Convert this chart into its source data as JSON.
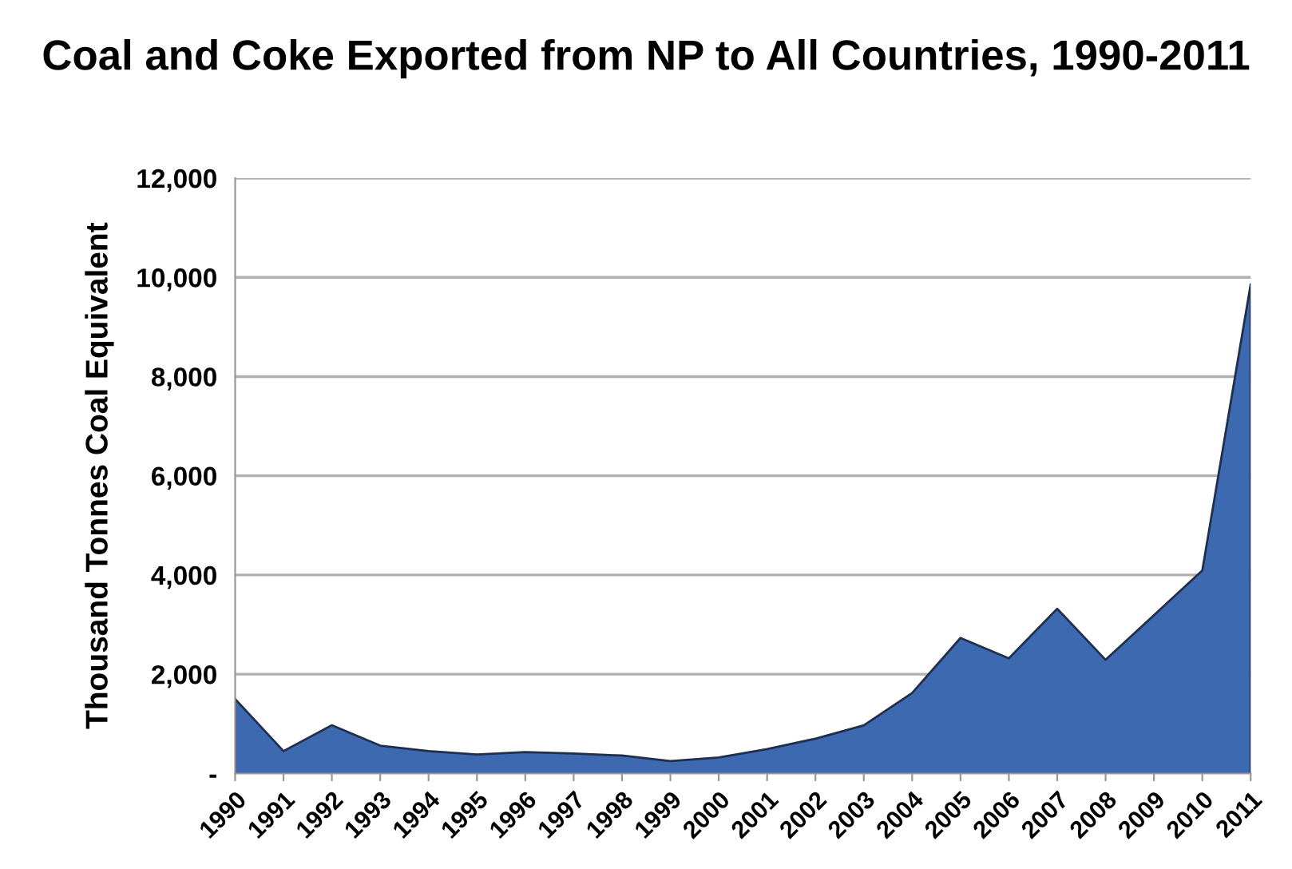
{
  "chart_data": {
    "type": "area",
    "title": "Coal and Coke Exported from NP to All Countries, 1990-2011",
    "ylabel": "Thousand Tonnes Coal Equivalent",
    "categories": [
      "1990",
      "1991",
      "1992",
      "1993",
      "1994",
      "1995",
      "1996",
      "1997",
      "1998",
      "1999",
      "2000",
      "2001",
      "2002",
      "2003",
      "2004",
      "2005",
      "2006",
      "2007",
      "2008",
      "2009",
      "2010",
      "2011"
    ],
    "series": [
      {
        "color": "#3d69b0",
        "values": [
          1500,
          450,
          970,
          560,
          450,
          380,
          430,
          400,
          360,
          250,
          320,
          490,
          700,
          970,
          1620,
          2730,
          2320,
          3320,
          2290,
          3190,
          4090,
          9860
        ]
      }
    ],
    "ylim": [
      0,
      12000
    ],
    "yticks": [
      {
        "value": 0,
        "label": "-"
      },
      {
        "value": 2000,
        "label": "2,000"
      },
      {
        "value": 4000,
        "label": "4,000"
      },
      {
        "value": 6000,
        "label": "6,000"
      },
      {
        "value": 8000,
        "label": "8,000"
      },
      {
        "value": 10000,
        "label": "10,000"
      },
      {
        "value": 12000,
        "label": "12,000"
      }
    ],
    "grid": "y",
    "legend": false
  }
}
